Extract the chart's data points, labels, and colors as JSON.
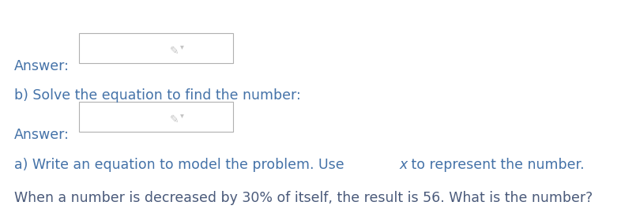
{
  "background_color": "#ffffff",
  "text_color_dark": "#4a5a7a",
  "text_color_blue": "#4472a8",
  "line1": "When a number is decreased by 30% of itself, the result is 56. What is the number?",
  "line2": "a) Write an equation to model the problem. Use ",
  "line2_x": "x",
  "line2_end": " to represent the number.",
  "line3": "Answer:",
  "line4": "b) Solve the equation to find the number:",
  "line5": "Answer:",
  "font_size": 12.5,
  "box_edge_color": "#b0b0b0",
  "pencil_color": "#b0b0b0"
}
